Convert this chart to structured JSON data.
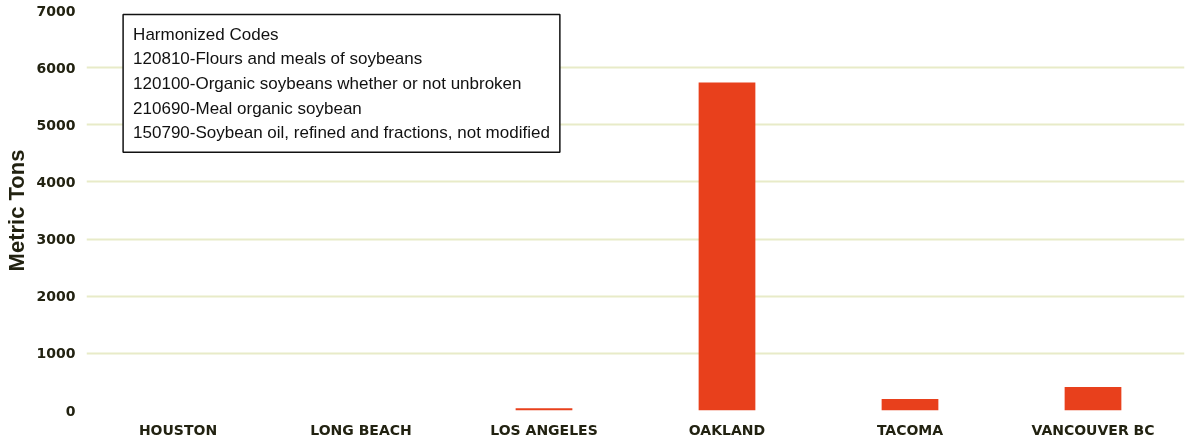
{
  "chart_data": {
    "type": "bar",
    "ylabel": "Metric Tons",
    "categories": [
      "HOUSTON",
      "LONG BEACH",
      "LOS ANGELES",
      "OAKLAND",
      "TACOMA",
      "VANCOUVER BC"
    ],
    "values": [
      0,
      0,
      40,
      5740,
      200,
      410
    ],
    "color": "#e8401c",
    "ylim": [
      0,
      7000
    ],
    "yticks": [
      0,
      1000,
      2000,
      3000,
      4000,
      5000,
      6000,
      7000
    ],
    "grid": "y",
    "annotations": [
      "Harmonized Codes",
      "120810-Flours and meals of soybeans",
      "120100-Organic soybeans whether or not unbroken",
      "210690-Meal organic soybean",
      "150790-Soybean oil, refined and fractions, not modified"
    ]
  }
}
